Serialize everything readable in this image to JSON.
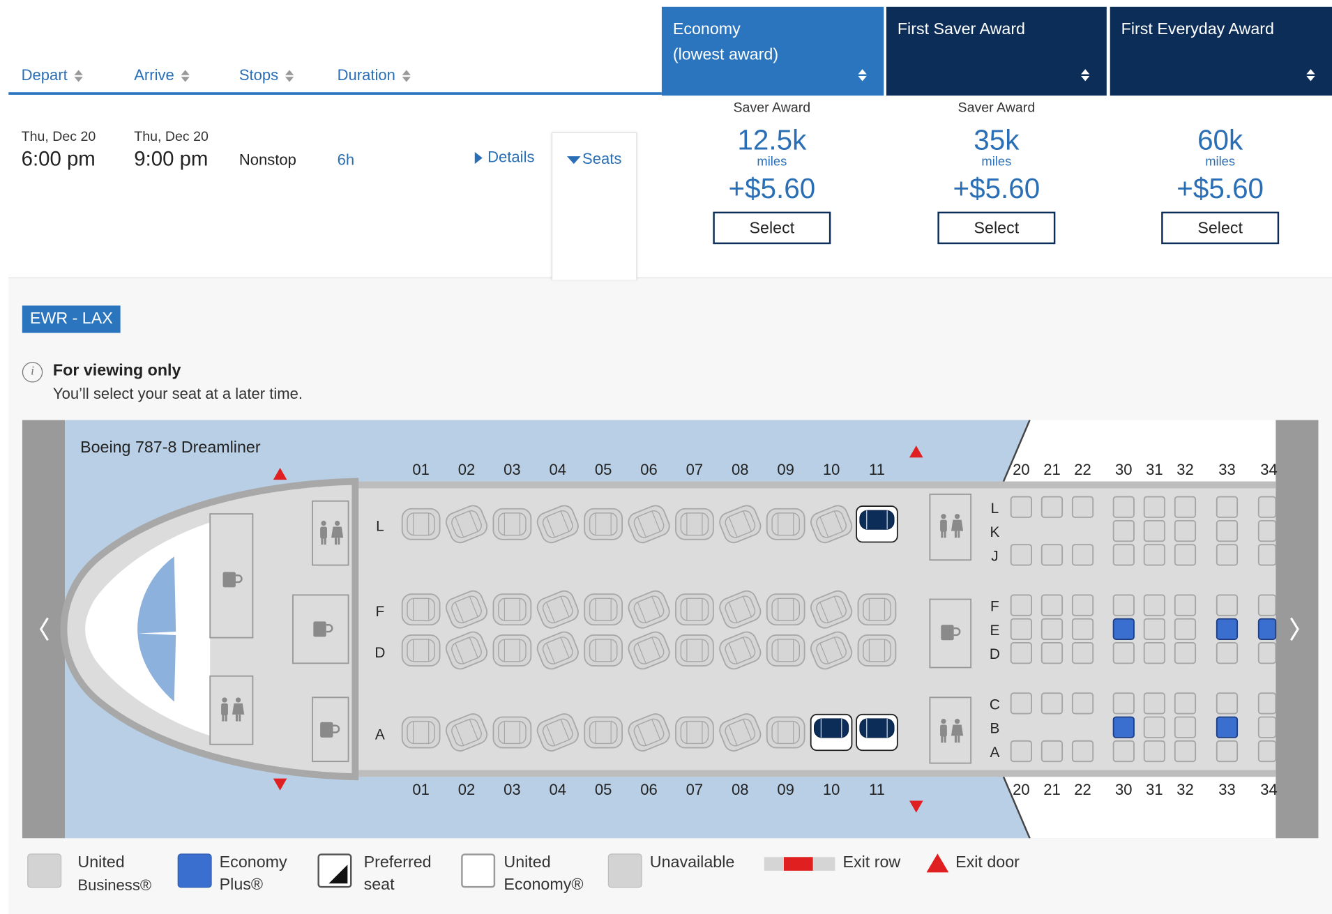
{
  "header": {
    "columns": [
      {
        "label": "Depart"
      },
      {
        "label": "Arrive"
      },
      {
        "label": "Stops"
      },
      {
        "label": "Duration"
      }
    ],
    "fare_columns": [
      {
        "label_line1": "Economy",
        "label_line2": "(lowest award)",
        "color": "#2a75be"
      },
      {
        "label_line1": "First Saver Award",
        "label_line2": "",
        "color": "#0c2d57"
      },
      {
        "label_line1": "First Everyday Award",
        "label_line2": "",
        "color": "#0c2d57"
      }
    ]
  },
  "flight": {
    "depart_date": "Thu, Dec 20",
    "depart_time": "6:00 pm",
    "arrive_date": "Thu, Dec 20",
    "arrive_time": "9:00 pm",
    "stops": "Nonstop",
    "duration": "6h",
    "details_label": "Details",
    "seats_label": "Seats"
  },
  "fares": [
    {
      "type": "Saver Award",
      "miles": "12.5k",
      "miles_label": "miles",
      "tax": "+$5.60",
      "select_label": "Select"
    },
    {
      "type": "Saver Award",
      "miles": "35k",
      "miles_label": "miles",
      "tax": "+$5.60",
      "select_label": "Select"
    },
    {
      "type": "",
      "miles": "60k",
      "miles_label": "miles",
      "tax": "+$5.60",
      "select_label": "Select"
    }
  ],
  "seatmap": {
    "route": "EWR - LAX",
    "info_title": "For viewing only",
    "info_text": "You’ll select your seat at a later time.",
    "aircraft": "Boeing 787-8 Dreamliner",
    "business_rows": [
      "01",
      "02",
      "03",
      "04",
      "05",
      "06",
      "07",
      "08",
      "09",
      "10",
      "11"
    ],
    "economy_rows": [
      "20",
      "21",
      "22",
      "30",
      "31",
      "32",
      "33",
      "34"
    ],
    "business_letters": [
      "L",
      "F",
      "D",
      "A"
    ],
    "economy_letters": [
      "L",
      "K",
      "J",
      "F",
      "E",
      "D",
      "C",
      "B",
      "A"
    ],
    "economy_plus_seats": [
      "30E",
      "30B",
      "33E",
      "33B",
      "34E"
    ],
    "preferred_seats": [
      "11L",
      "10A",
      "11A"
    ],
    "colors": {
      "economy_plus": "#3a6ecf",
      "business_seat": "#0c2d57",
      "cabin_bg": "#b9cfe6",
      "fuselage": "#dcdcdc",
      "exit": "#e02020"
    }
  },
  "legend": [
    {
      "line1": "United",
      "line2": "Business®"
    },
    {
      "line1": "Economy",
      "line2": "Plus®"
    },
    {
      "line1": "Preferred",
      "line2": "seat"
    },
    {
      "line1": "United",
      "line2": "Economy®"
    },
    {
      "line1": "Unavailable",
      "line2": ""
    },
    {
      "line1": "Exit row",
      "line2": ""
    },
    {
      "line1": "Exit door",
      "line2": ""
    }
  ]
}
